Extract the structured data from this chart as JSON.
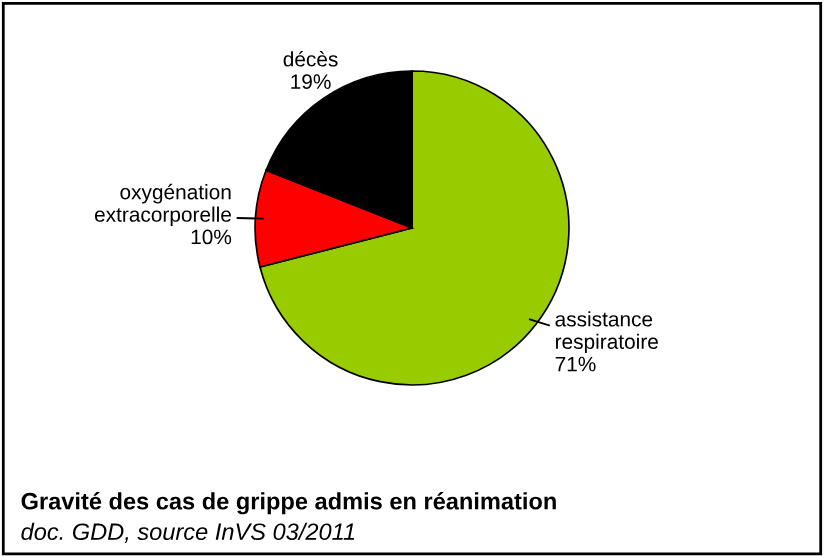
{
  "chart_data": {
    "type": "pie",
    "title": "Gravité des cas de grippe admis en réanimation",
    "categories": [
      "assistance respiratoire",
      "oxygénation extracorporelle",
      "décès"
    ],
    "values": [
      71,
      10,
      19
    ],
    "value_labels": [
      "71%",
      "10%",
      "19%"
    ],
    "colors": [
      "#99cc00",
      "#ff0000",
      "#000000"
    ],
    "annotations": [
      "doc. GDD, source InVS 03/2011"
    ],
    "legend": false
  }
}
